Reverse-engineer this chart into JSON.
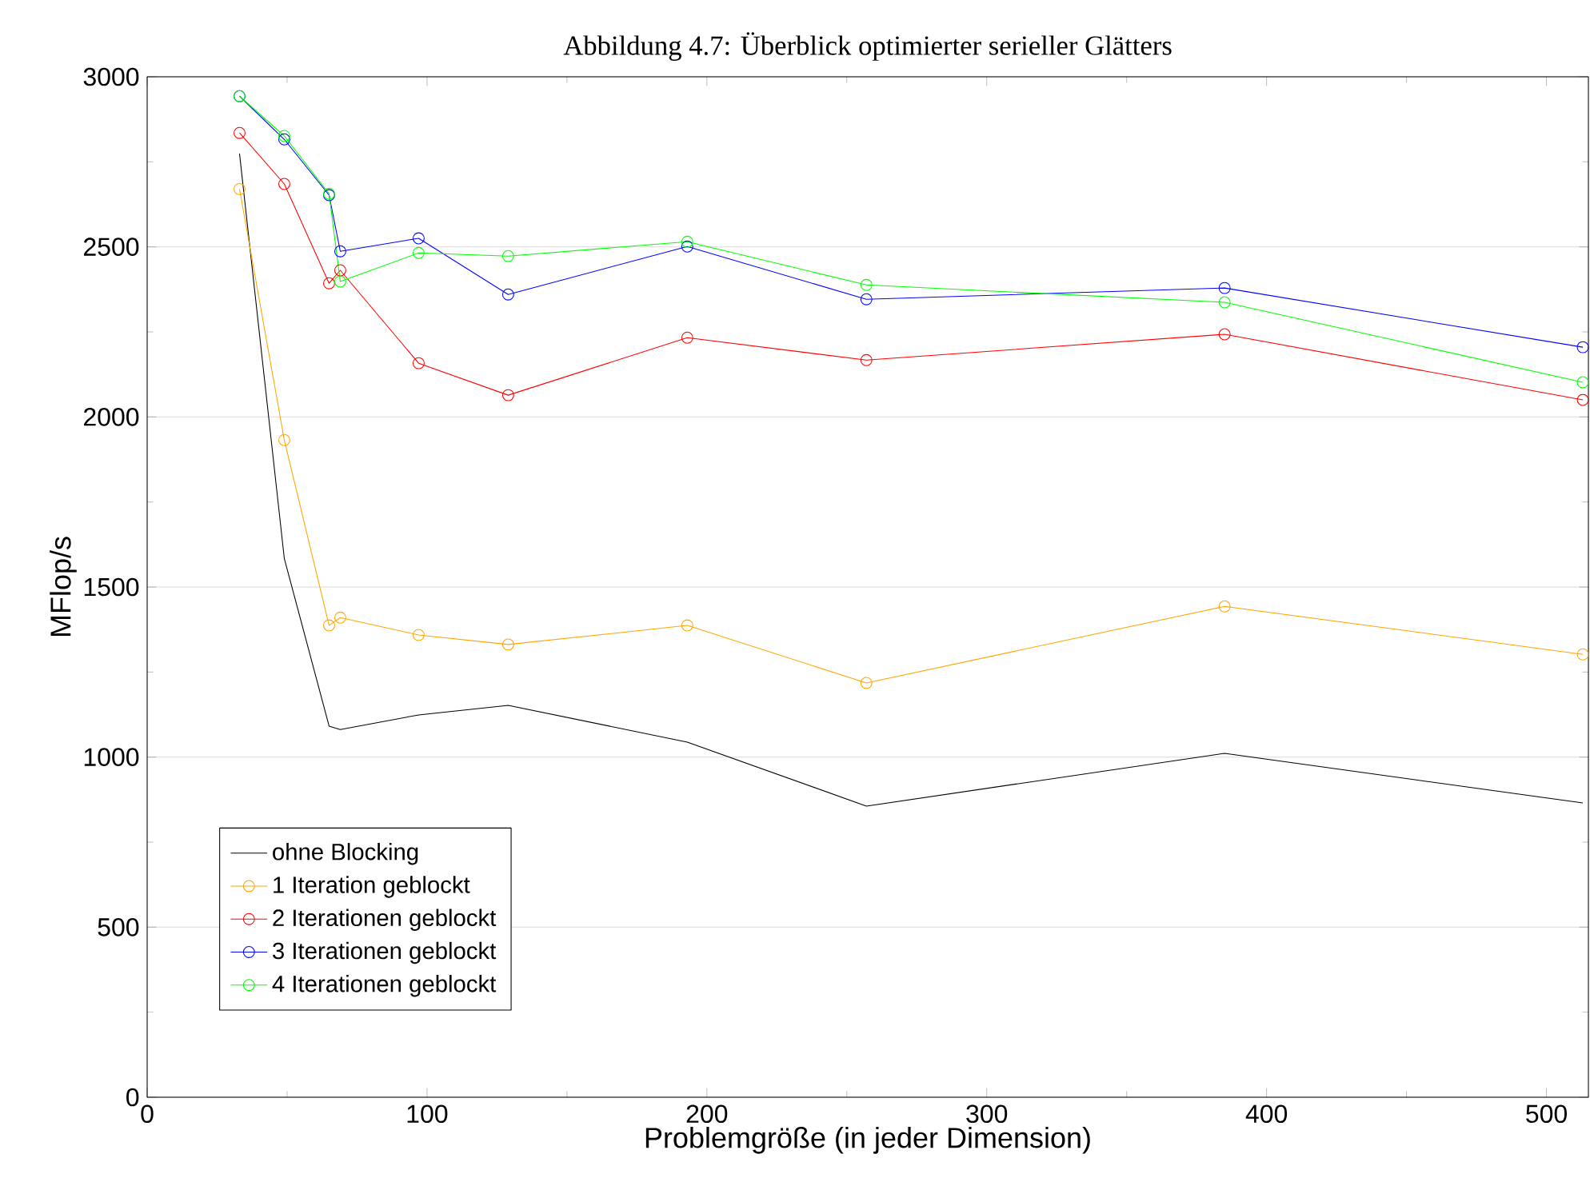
{
  "chart_data": {
    "type": "line",
    "title": "Abbildung 4.7: Überblick optimierter serieller Glätters",
    "xlabel": "Problemgröße (in jeder Dimension)",
    "ylabel": "MFlop/s",
    "x": [
      33,
      49,
      65,
      69,
      97,
      129,
      193,
      257,
      385,
      513
    ],
    "series": [
      {
        "name": "ohne Blocking",
        "color": "#000000",
        "marker": "none",
        "values": [
          2774,
          1584,
          1091,
          1081,
          1124,
          1152,
          1044,
          856,
          1011,
          865
        ]
      },
      {
        "name": "1 Iteration geblockt",
        "color": "#ffa500",
        "marker": "circle",
        "values": [
          2670,
          1932,
          1387,
          1410,
          1359,
          1331,
          1387,
          1218,
          1443,
          1302
        ]
      },
      {
        "name": "2 Iterationen geblockt",
        "color": "#ff0000",
        "marker": "circle",
        "values": [
          2835,
          2685,
          2393,
          2431,
          2158,
          2064,
          2233,
          2167,
          2243,
          2050
        ]
      },
      {
        "name": "3 Iterationen geblockt",
        "color": "#0000ff",
        "marker": "circle",
        "values": [
          2943,
          2816,
          2652,
          2487,
          2525,
          2360,
          2501,
          2346,
          2379,
          2205
        ]
      },
      {
        "name": "4 Iterationen geblockt",
        "color": "#00ff00",
        "marker": "circle",
        "values": [
          2943,
          2826,
          2656,
          2398,
          2482,
          2473,
          2515,
          2388,
          2337,
          2102
        ]
      }
    ],
    "xlim": [
      0,
      515
    ],
    "ylim": [
      0,
      3000
    ],
    "xticks": [
      0,
      100,
      200,
      300,
      400,
      500
    ],
    "yticks": [
      0,
      500,
      1000,
      1500,
      2000,
      2500,
      3000
    ],
    "grid": "y",
    "legend": "bottom left",
    "line_style": "solid"
  }
}
